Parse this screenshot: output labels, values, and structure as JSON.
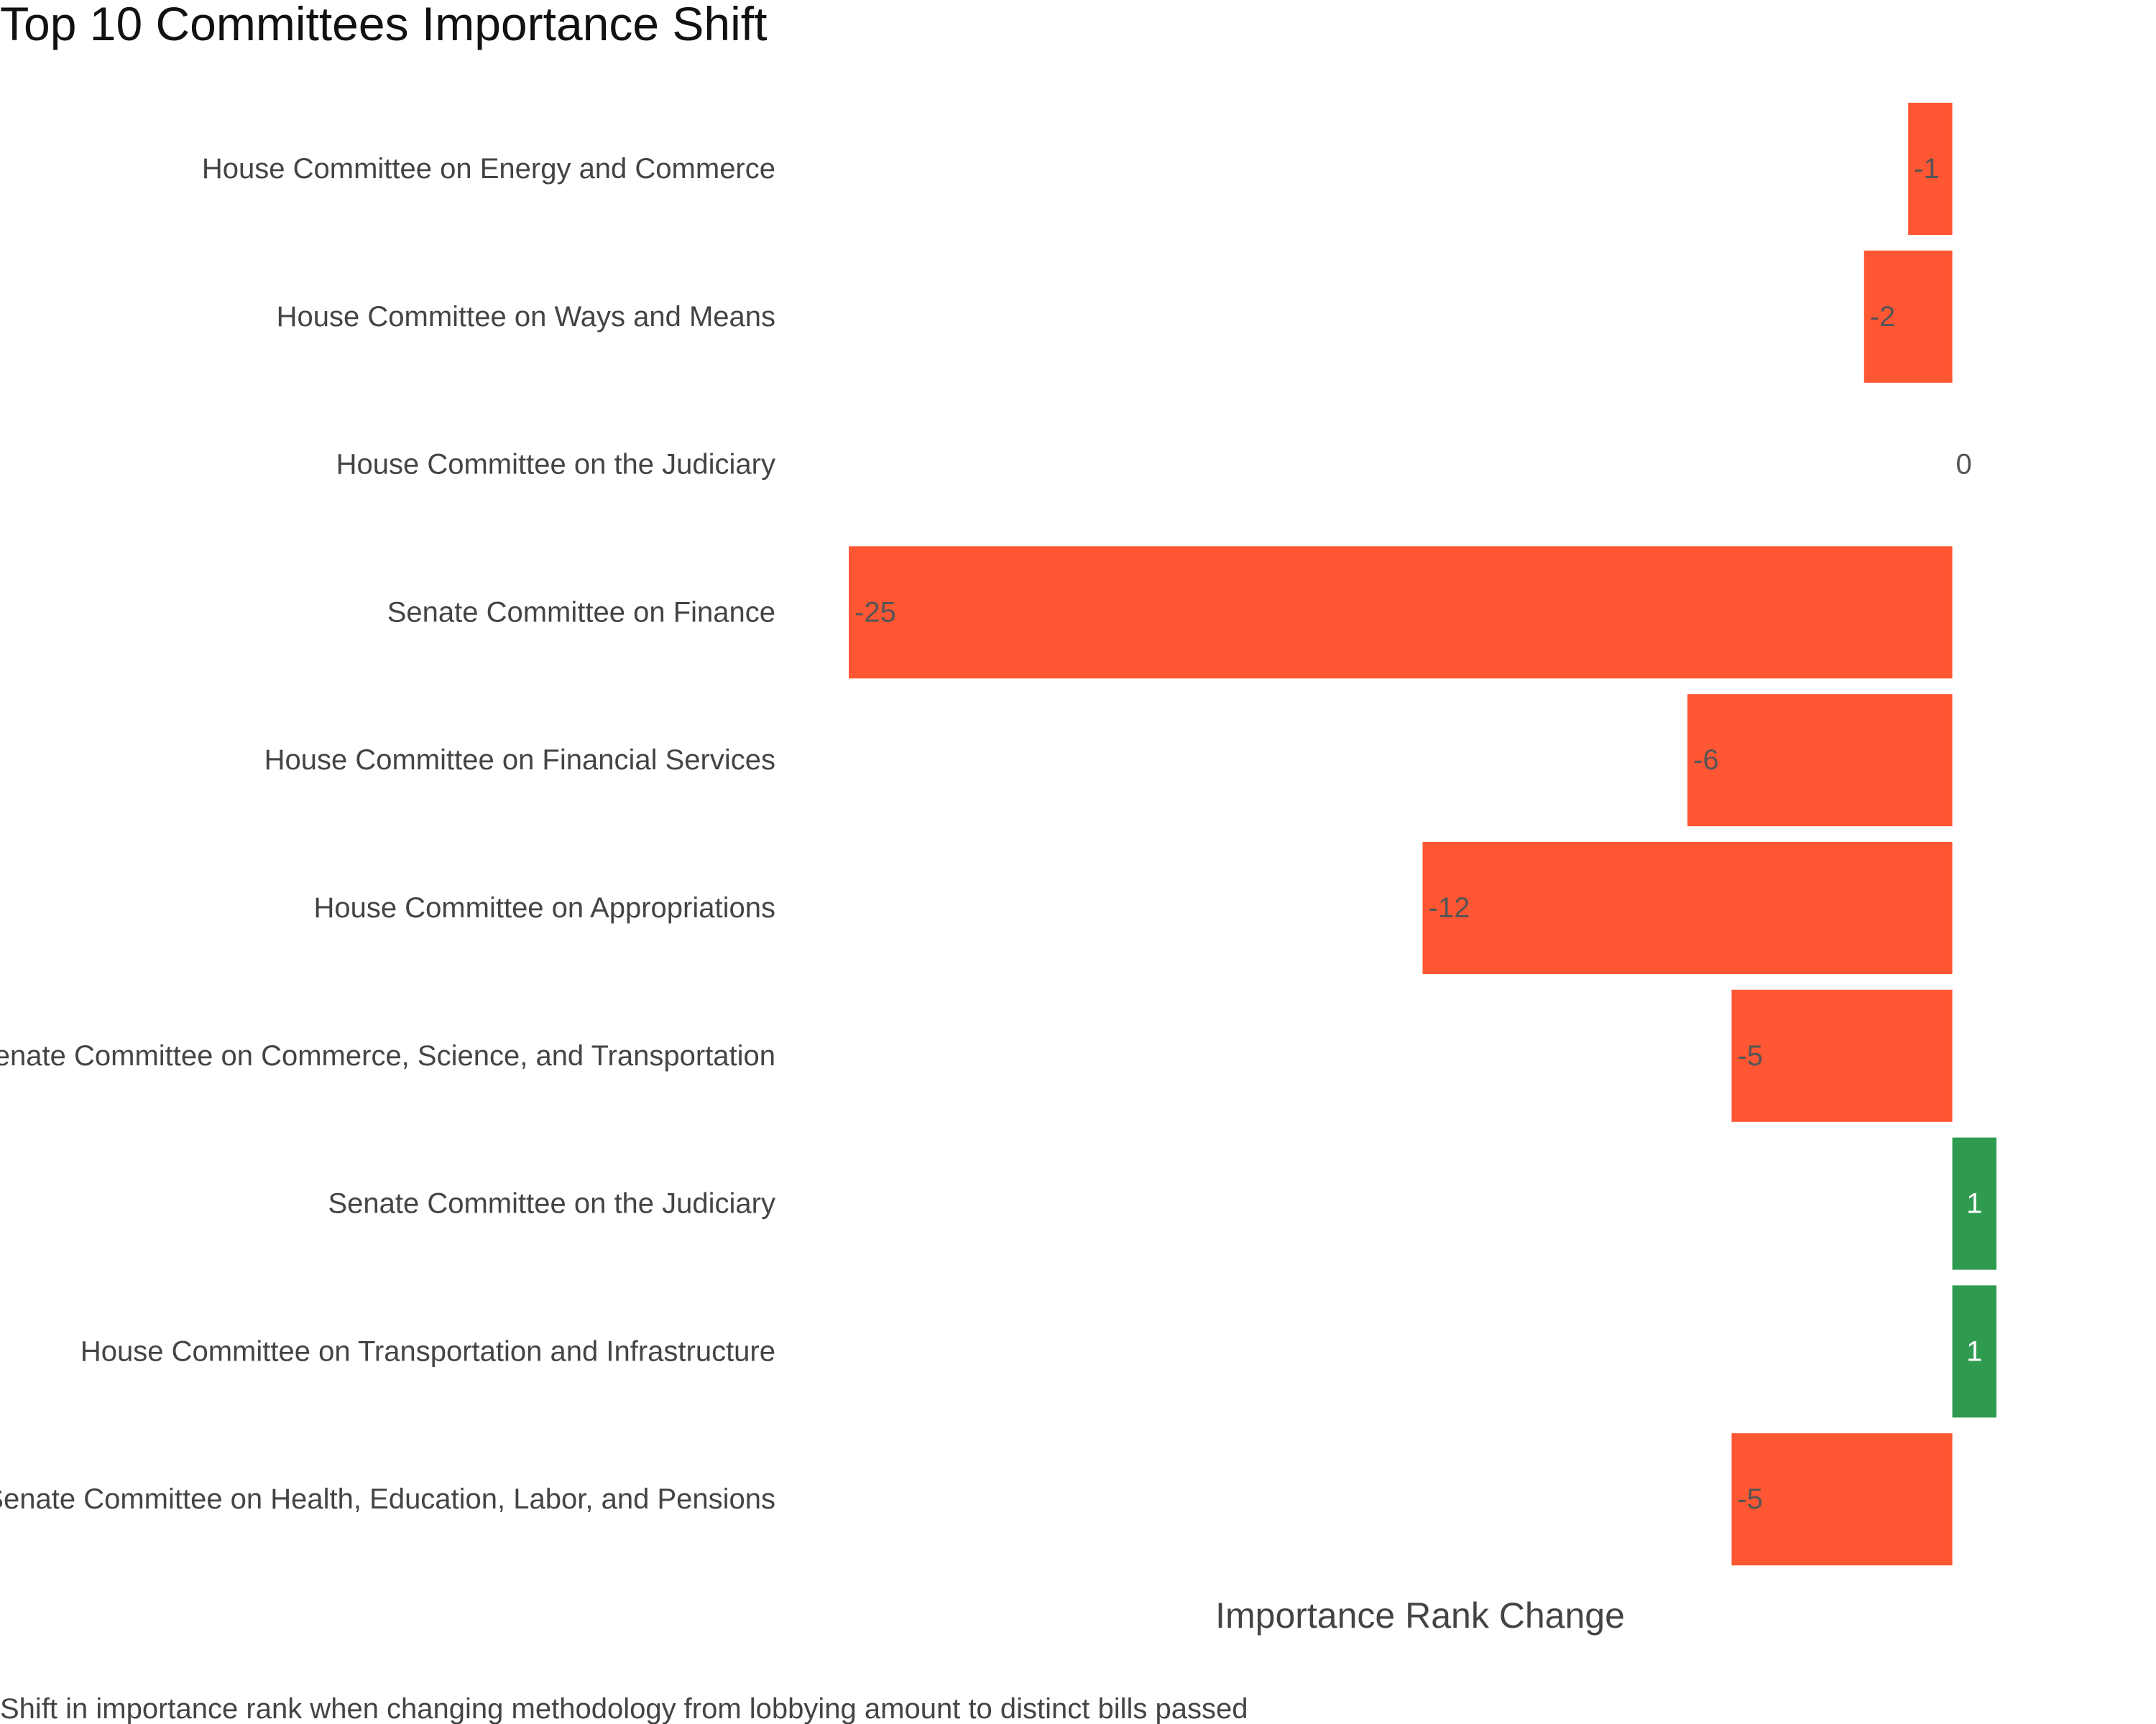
{
  "chart_data": {
    "type": "bar",
    "orientation": "horizontal",
    "title": "Top 10 Committees Importance Shift",
    "xlabel": "Importance Rank Change",
    "ylabel": "",
    "caption": "Shift in importance rank when changing methodology from lobbying amount to distinct bills passed",
    "categories": [
      "House Committee on Energy and Commerce",
      "House Committee on Ways and Means",
      "House Committee on the Judiciary",
      "Senate Committee on Finance",
      "House Committee on Financial Services",
      "House Committee on Appropriations",
      "Senate Committee on Commerce, Science, and Transportation",
      "Senate Committee on the Judiciary",
      "House Committee on Transportation and Infrastructure",
      "Senate Committee on Health, Education, Labor, and Pensions"
    ],
    "values": [
      -1,
      -2,
      0,
      -25,
      -6,
      -12,
      -5,
      1,
      1,
      -5
    ],
    "value_labels": [
      "-1",
      "-2",
      "0",
      "-25",
      "-6",
      "-12",
      "-5",
      "1",
      "1",
      "-5"
    ],
    "xlim": [
      -25,
      1
    ],
    "grid": false,
    "legend": "none",
    "colors": {
      "negative": "#ff5733",
      "positive": "#2e9b4f"
    }
  }
}
